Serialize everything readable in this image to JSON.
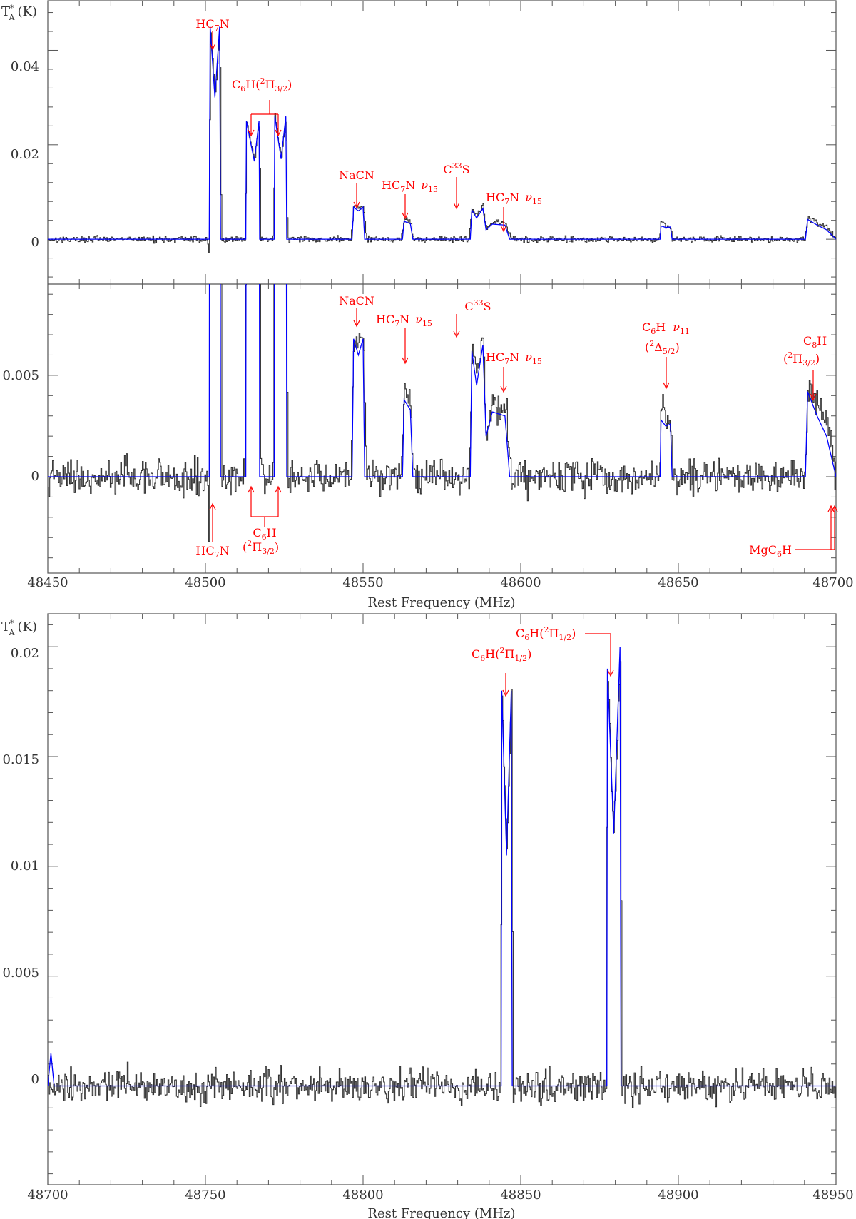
{
  "chart_data": [
    {
      "type": "line",
      "panel": "top",
      "ylabel": "T*A (K)",
      "xlim": [
        48450,
        48700
      ],
      "ylim": [
        -0.0095,
        0.0505
      ],
      "yticks": [
        0,
        0.02,
        0.04
      ],
      "ytick_labels": [
        "0",
        "0.02",
        "0.04"
      ],
      "series": [
        {
          "role": "observed",
          "color": "#333333",
          "noise": 0.00085,
          "anchors": [
            [
              48450,
              0
            ],
            [
              48500.5,
              0
            ],
            [
              48501,
              -0.003
            ],
            [
              48501.5,
              0.045
            ],
            [
              48503,
              0.03
            ],
            [
              48504.5,
              0.045
            ],
            [
              48505,
              0
            ],
            [
              48512.5,
              0
            ],
            [
              48513,
              0.025
            ],
            [
              48515.5,
              0.0165
            ],
            [
              48517,
              0.025
            ],
            [
              48517.5,
              0
            ],
            [
              48521.5,
              0
            ],
            [
              48522,
              0.026
            ],
            [
              48524,
              0.017
            ],
            [
              48525.5,
              0.026
            ],
            [
              48526,
              0
            ],
            [
              48546,
              0
            ],
            [
              48547,
              0.0072
            ],
            [
              48548.5,
              0.0065
            ],
            [
              48550,
              0.0072
            ],
            [
              48551,
              0
            ],
            [
              48562,
              0
            ],
            [
              48563,
              0.0045
            ],
            [
              48565,
              0.0035
            ],
            [
              48566,
              0
            ],
            [
              48583.5,
              0
            ],
            [
              48584.5,
              0.0065
            ],
            [
              48586,
              0.005
            ],
            [
              48588,
              0.0068
            ],
            [
              48589,
              0.002
            ],
            [
              48591,
              0.0035
            ],
            [
              48595,
              0.0035
            ],
            [
              48597,
              0
            ],
            [
              48644,
              0
            ],
            [
              48644.5,
              0.0045
            ],
            [
              48646,
              0.0025
            ],
            [
              48647.5,
              0.0025
            ],
            [
              48648,
              0
            ],
            [
              48690,
              0
            ],
            [
              48691,
              0.0045
            ],
            [
              48694,
              0.0035
            ],
            [
              48697,
              0.0025
            ],
            [
              48700,
              0
            ]
          ]
        },
        {
          "role": "model",
          "color": "#0000ff",
          "anchors": [
            [
              48450,
              0
            ],
            [
              48501.2,
              0
            ],
            [
              48501.5,
              0.045
            ],
            [
              48503,
              0.03
            ],
            [
              48504.5,
              0.045
            ],
            [
              48504.8,
              0
            ],
            [
              48512.8,
              0
            ],
            [
              48513,
              0.025
            ],
            [
              48515.5,
              0.0165
            ],
            [
              48517,
              0.025
            ],
            [
              48517.2,
              0
            ],
            [
              48521.8,
              0
            ],
            [
              48522,
              0.026
            ],
            [
              48524,
              0.017
            ],
            [
              48525.5,
              0.026
            ],
            [
              48525.8,
              0
            ],
            [
              48546.5,
              0
            ],
            [
              48547,
              0.0068
            ],
            [
              48548.5,
              0.006
            ],
            [
              48550,
              0.0068
            ],
            [
              48550.5,
              0
            ],
            [
              48562.5,
              0
            ],
            [
              48563,
              0.0038
            ],
            [
              48565,
              0.0033
            ],
            [
              48565.8,
              0
            ],
            [
              48584,
              0
            ],
            [
              48584.5,
              0.0062
            ],
            [
              48586,
              0.0045
            ],
            [
              48588,
              0.0065
            ],
            [
              48589,
              0.002
            ],
            [
              48591,
              0.0032
            ],
            [
              48595,
              0.003
            ],
            [
              48596.5,
              0
            ],
            [
              48644.2,
              0
            ],
            [
              48644.5,
              0.0028
            ],
            [
              48646,
              0.0025
            ],
            [
              48647.5,
              0.0026
            ],
            [
              48648,
              0
            ],
            [
              48690.3,
              0
            ],
            [
              48691,
              0.0042
            ],
            [
              48694,
              0.003
            ],
            [
              48697,
              0.002
            ],
            [
              48700,
              0
            ]
          ]
        }
      ],
      "annotations": [
        {
          "text": "HC7N",
          "sub": "7",
          "base": "HC",
          "tail": "N"
        },
        {
          "text": "C6H(2Π3/2)"
        },
        {
          "text": "NaCN"
        },
        {
          "text": "HC7N ν15"
        },
        {
          "text": "C33S"
        },
        {
          "text": "HC7N ν15"
        }
      ]
    },
    {
      "type": "line",
      "panel": "middle",
      "xlim": [
        48450,
        48700
      ],
      "ylim": [
        -0.00475,
        0.0095
      ],
      "yticks": [
        0,
        0.005
      ],
      "ytick_labels": [
        "0",
        "0.005"
      ],
      "series": [
        {
          "role": "observed",
          "color": "#333333",
          "noise": 0.0011
        },
        {
          "role": "model",
          "color": "#0000ff"
        }
      ],
      "annotations": [
        {
          "text": "NaCN"
        },
        {
          "text": "HC7N ν15"
        },
        {
          "text": "C33S"
        },
        {
          "text": "HC7N ν15"
        },
        {
          "text": "C6H ν11 (2Δ5/2)"
        },
        {
          "text": "C8H (2Π3/2)"
        },
        {
          "text": "HC7N"
        },
        {
          "text": "C6H (2Π3/2)"
        },
        {
          "text": "MgC6H"
        }
      ]
    },
    {
      "type": "line",
      "panel": "bottom",
      "ylabel": "T*A (K)",
      "xlabel": "Rest Frequency (MHz)",
      "xlim": [
        48700,
        48950
      ],
      "ylim": [
        -0.0045,
        0.0215
      ],
      "yticks": [
        0,
        0.005,
        0.01,
        0.015,
        0.02
      ],
      "ytick_labels": [
        "0",
        "0.005",
        "0.01",
        "0.015",
        "0.02"
      ],
      "series": [
        {
          "role": "observed",
          "color": "#333333",
          "noise": 0.00095,
          "anchors": [
            [
              48700,
              0
            ],
            [
              48843.5,
              0
            ],
            [
              48844,
              0.018
            ],
            [
              48845.5,
              0.0105
            ],
            [
              48847,
              0.018
            ],
            [
              48847.5,
              0
            ],
            [
              48877,
              0
            ],
            [
              48877.5,
              0.019
            ],
            [
              48879.5,
              0.0115
            ],
            [
              48881.5,
              0.02
            ],
            [
              48882,
              0
            ],
            [
              48950,
              0
            ]
          ]
        },
        {
          "role": "model",
          "color": "#0000ff",
          "anchors": [
            [
              48700,
              0
            ],
            [
              48701,
              0.0015
            ],
            [
              48702,
              0
            ],
            [
              48843.8,
              0
            ],
            [
              48844,
              0.018
            ],
            [
              48845.5,
              0.0105
            ],
            [
              48847,
              0.018
            ],
            [
              48847.3,
              0
            ],
            [
              48877.3,
              0
            ],
            [
              48877.5,
              0.019
            ],
            [
              48879.5,
              0.0115
            ],
            [
              48881.5,
              0.02
            ],
            [
              48881.8,
              0
            ],
            [
              48950,
              0
            ]
          ]
        }
      ],
      "annotations": [
        {
          "text": "C6H(2Π1/2)"
        },
        {
          "text": "C6H(2Π1/2)"
        }
      ]
    }
  ],
  "axes": {
    "top_ylabel_base": "T",
    "top_ylabel_sup": "*",
    "top_ylabel_sub": "A",
    "top_ylabel_unit": "(K)",
    "bottom_ylabel_base": "T",
    "bottom_ylabel_sup": "*",
    "bottom_ylabel_sub": "A",
    "bottom_ylabel_unit": "(K)",
    "xlabel_upper": "Rest Frequency (MHz)",
    "xlabel_lower": "Rest Frequency (MHz)",
    "xtick_labels_upper": [
      "48450",
      "48500",
      "48550",
      "48600",
      "48650",
      "48700"
    ],
    "xtick_labels_lower": [
      "48700",
      "48750",
      "48800",
      "48850",
      "48900",
      "48950"
    ]
  },
  "labels": {
    "hc7n_base": "HC",
    "hc7n_sub": "7",
    "hc7n_tail": "N",
    "nu": "ν",
    "nu15_sub": "15",
    "nu11_sub": "11",
    "nacn": "NaCN",
    "c33s_base": "C",
    "c33s_sup": "33",
    "c33s_tail": "S",
    "c6h_base": "C",
    "c6h_sub": "6",
    "c6h_tail": "H",
    "c8h_base": "C",
    "c8h_sub": "8",
    "c8h_tail": "H",
    "pi32_open": "(",
    "pi32_sup": "2",
    "pi32_pi": "Π",
    "pi32_sub": "3/2",
    "pi_close": ")",
    "pi12_sub": "1/2",
    "delta_pi": "Δ",
    "delta_sub": "5/2",
    "mgc6h_base": "MgC",
    "mgc6h_sub": "6",
    "mgc6h_tail": "H"
  },
  "colors": {
    "observed": "#333333",
    "model": "#0000ff",
    "annotation": "#ff0000",
    "frame": "#555555"
  }
}
